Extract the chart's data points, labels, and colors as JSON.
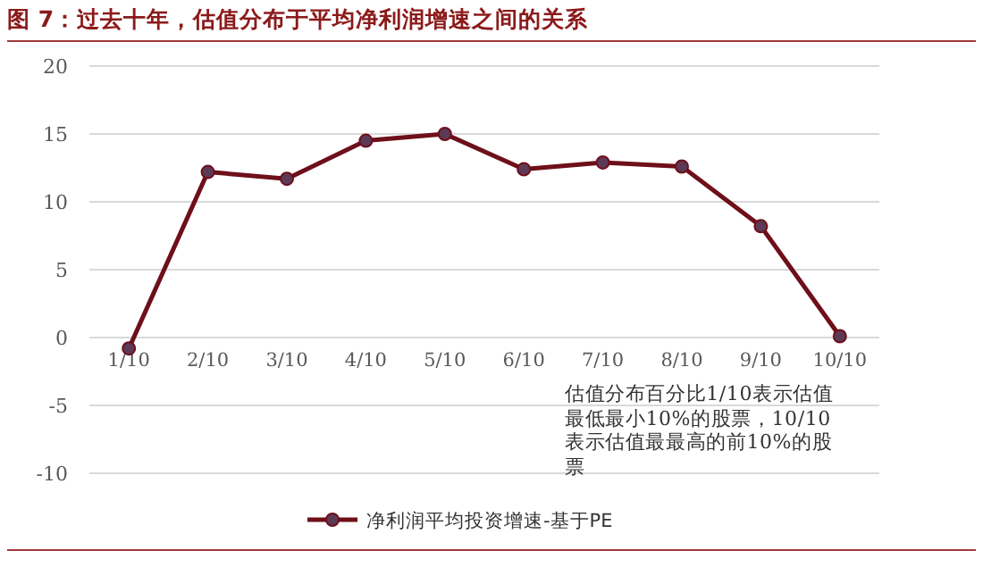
{
  "chart_data": {
    "type": "line",
    "title": "图 7：过去十年，估值分布于平均净利润增速之间的关系",
    "categories": [
      "1/10",
      "2/10",
      "3/10",
      "4/10",
      "5/10",
      "6/10",
      "7/10",
      "8/10",
      "9/10",
      "10/10"
    ],
    "series": [
      {
        "name": "净利润平均投资增速-基于PE",
        "color": "#6e0f1a",
        "values": [
          -0.8,
          12.2,
          11.7,
          14.5,
          15.0,
          12.4,
          12.9,
          12.6,
          8.2,
          0.1
        ]
      }
    ],
    "ylim": [
      -10,
      20
    ],
    "yticks": [
      -10,
      -5,
      0,
      5,
      10,
      15,
      20
    ],
    "grid": "y",
    "legend": "bottom",
    "marker": "circle",
    "line_style": "solid",
    "annotations": [
      "估值分布百分比1/10表示估值最低最小10%的股票，10/10表示估值最最高的前10%的股票"
    ]
  }
}
